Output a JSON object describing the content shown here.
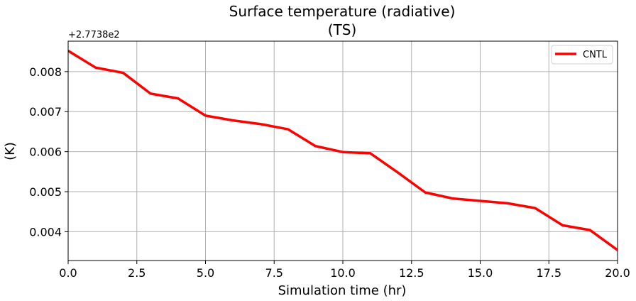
{
  "chart_data": {
    "type": "line",
    "title_line1": "Surface temperature (radiative)",
    "title_line2": "(TS)",
    "xlabel": "Simulation time (hr)",
    "ylabel": "(K)",
    "y_offset_label": "+2.7738e2",
    "xlim": [
      0,
      20
    ],
    "ylim": [
      0.00328,
      0.00876
    ],
    "xticks": [
      0,
      2.5,
      5,
      7.5,
      10,
      12.5,
      15,
      17.5,
      20
    ],
    "xtick_labels": [
      "0.0",
      "2.5",
      "5.0",
      "7.5",
      "10.0",
      "12.5",
      "15.0",
      "17.5",
      "20.0"
    ],
    "yticks": [
      0.004,
      0.005,
      0.006,
      0.007,
      0.008
    ],
    "ytick_labels": [
      "0.004",
      "0.005",
      "0.006",
      "0.007",
      "0.008"
    ],
    "grid": true,
    "legend_position": "upper right",
    "series": [
      {
        "name": "CNTL",
        "color": "#ff0000",
        "x": [
          0,
          1,
          2,
          3,
          4,
          5,
          6,
          7,
          8,
          9,
          10,
          11,
          12,
          13,
          14,
          15,
          16,
          17,
          18,
          19,
          20
        ],
        "values": [
          0.00852,
          0.0081,
          0.00797,
          0.00745,
          0.00733,
          0.0069,
          0.00678,
          0.00669,
          0.00656,
          0.00614,
          0.00599,
          0.00596,
          0.00548,
          0.00498,
          0.00483,
          0.00477,
          0.00471,
          0.00459,
          0.00416,
          0.00404,
          0.00354
        ]
      }
    ]
  }
}
